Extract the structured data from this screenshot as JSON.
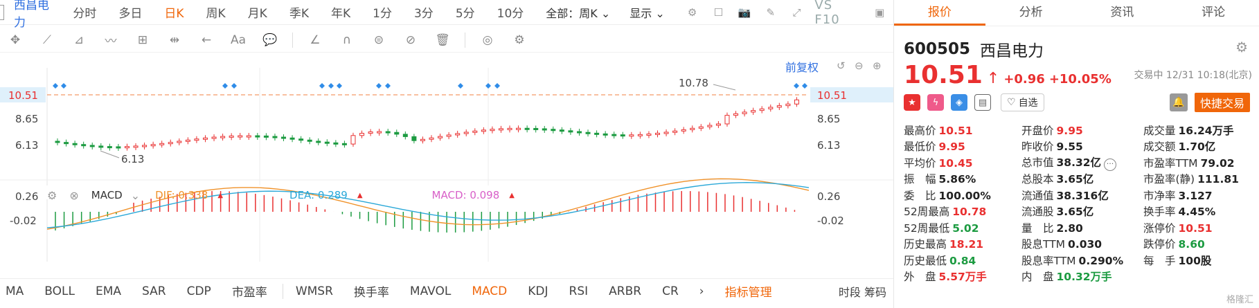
{
  "topbar": {
    "stock_name": "西昌电力",
    "periods": [
      "分时",
      "多日",
      "日K",
      "周K",
      "月K",
      "季K",
      "年K",
      "1分",
      "3分",
      "5分",
      "10分"
    ],
    "active_period": "日K",
    "all_select": "全部：周K",
    "display_select": "显示",
    "vs_label": "VS F10"
  },
  "chart": {
    "fuquan_label": "前复权",
    "price_ticks": [
      "10.51",
      "8.65",
      "6.13"
    ],
    "current_price_tag": "10.51",
    "high_label": "10.78",
    "low_label": "6.13",
    "macd_ticks": [
      "0.26",
      "-0.02"
    ]
  },
  "macd_header": {
    "name": "MACD",
    "dif": "DIF: 0.338",
    "dea": "DEA: 0.289",
    "macd": "MACD: 0.098"
  },
  "indicators": {
    "tabs": [
      "MA",
      "BOLL",
      "EMA",
      "SAR",
      "CDP",
      "市盈率",
      "WMSR",
      "换手率",
      "MAVOL",
      "MACD",
      "KDJ",
      "RSI",
      "ARBR",
      "CR"
    ],
    "active": "MACD",
    "manage": "指标管理",
    "right": "时段 筹码"
  },
  "panel": {
    "tabs": [
      "报价",
      "分析",
      "资讯",
      "评论"
    ],
    "active_tab": "报价",
    "code": "600505",
    "name": "西昌电力",
    "price": "10.51",
    "change": "+0.96",
    "change_pct": "+10.05%",
    "status": "交易中 12/31 10:18(北京)",
    "zixuan": "自选",
    "quick_trade": "快捷交易",
    "rows": [
      [
        {
          "l": "最高价",
          "v": "10.51",
          "c": "up"
        },
        {
          "l": "开盘价",
          "v": "9.95",
          "c": "up"
        },
        {
          "l": "成交量",
          "v": "16.24万手",
          "c": ""
        }
      ],
      [
        {
          "l": "最低价",
          "v": "9.95",
          "c": "up"
        },
        {
          "l": "昨收价",
          "v": "9.55",
          "c": ""
        },
        {
          "l": "成交额",
          "v": "1.70亿",
          "c": ""
        }
      ],
      [
        {
          "l": "平均价",
          "v": "10.45",
          "c": "up"
        },
        {
          "l": "总市值",
          "v": "38.32亿",
          "c": ""
        },
        {
          "l": "市盈率TTM",
          "v": "79.02",
          "c": ""
        }
      ],
      [
        {
          "l": "振　幅",
          "v": "5.86%",
          "c": ""
        },
        {
          "l": "总股本",
          "v": "3.65亿",
          "c": ""
        },
        {
          "l": "市盈率(静)",
          "v": "111.81",
          "c": ""
        }
      ],
      [
        {
          "l": "委　比",
          "v": "100.00%",
          "c": ""
        },
        {
          "l": "流通值",
          "v": "38.316亿",
          "c": ""
        },
        {
          "l": "市净率",
          "v": "3.127",
          "c": ""
        }
      ],
      [
        {
          "l": "52周最高",
          "v": "10.78",
          "c": "up"
        },
        {
          "l": "流通股",
          "v": "3.65亿",
          "c": ""
        },
        {
          "l": "换手率",
          "v": "4.45%",
          "c": ""
        }
      ],
      [
        {
          "l": "52周最低",
          "v": "5.02",
          "c": "dn"
        },
        {
          "l": "量　比",
          "v": "2.80",
          "c": ""
        },
        {
          "l": "涨停价",
          "v": "10.51",
          "c": "up"
        }
      ],
      [
        {
          "l": "历史最高",
          "v": "18.21",
          "c": "up"
        },
        {
          "l": "股息TTM",
          "v": "0.030",
          "c": ""
        },
        {
          "l": "跌停价",
          "v": "8.60",
          "c": "dn"
        }
      ],
      [
        {
          "l": "历史最低",
          "v": "0.84",
          "c": "dn"
        },
        {
          "l": "股息率TTM",
          "v": "0.290%",
          "c": ""
        },
        {
          "l": "每　手",
          "v": "100股",
          "c": ""
        }
      ],
      [
        {
          "l": "外　盘",
          "v": "5.57万手",
          "c": "up"
        },
        {
          "l": "内　盘",
          "v": "10.32万手",
          "c": "dn"
        },
        {
          "l": "",
          "v": "",
          "c": ""
        }
      ]
    ],
    "watermark": "格隆汇"
  },
  "colors": {
    "up": "#e93030",
    "down": "#1c9b41",
    "accent": "#f0660a",
    "link": "#2f6fe0"
  }
}
